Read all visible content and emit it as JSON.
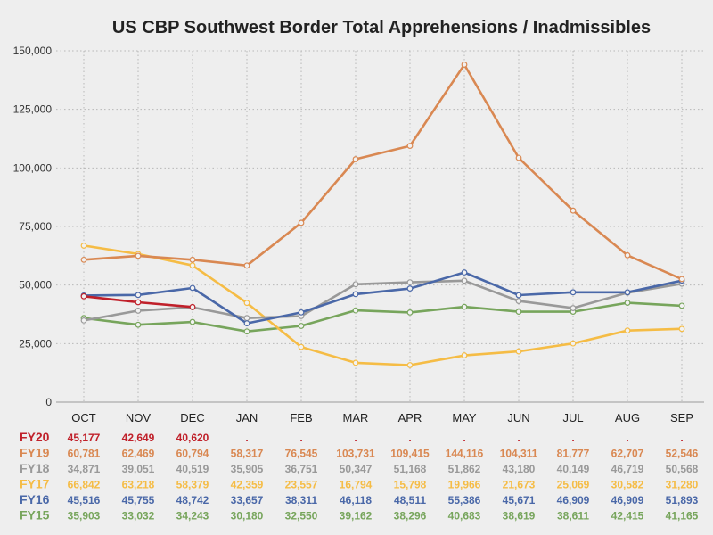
{
  "chart_data": {
    "type": "line",
    "title": "US CBP Southwest Border Total Apprehensions / Inadmissibles",
    "xlabel": "",
    "ylabel": "",
    "ylim": [
      0,
      150000
    ],
    "yticks": [
      "0",
      "25,000",
      "50,000",
      "75,000",
      "100,000",
      "125,000",
      "150,000"
    ],
    "ytick_values": [
      0,
      25000,
      50000,
      75000,
      100000,
      125000,
      150000
    ],
    "grid": true,
    "categories": [
      "OCT",
      "NOV",
      "DEC",
      "JAN",
      "FEB",
      "MAR",
      "APR",
      "MAY",
      "JUN",
      "JUL",
      "AUG",
      "SEP"
    ],
    "series": [
      {
        "name": "FY20",
        "color": "#c0202a",
        "values": [
          45177,
          42649,
          40620,
          null,
          null,
          null,
          null,
          null,
          null,
          null,
          null,
          null
        ],
        "labels": [
          "45,177",
          "42,649",
          "40,620",
          ".",
          ".",
          ".",
          ".",
          ".",
          ".",
          ".",
          ".",
          "."
        ]
      },
      {
        "name": "FY19",
        "color": "#d98852",
        "values": [
          60781,
          62469,
          60794,
          58317,
          76545,
          103731,
          109415,
          144116,
          104311,
          81777,
          62707,
          52546
        ],
        "labels": [
          "60,781",
          "62,469",
          "60,794",
          "58,317",
          "76,545",
          "103,731",
          "109,415",
          "144,116",
          "104,311",
          "81,777",
          "62,707",
          "52,546"
        ]
      },
      {
        "name": "FY18",
        "color": "#999999",
        "values": [
          34871,
          39051,
          40519,
          35905,
          36751,
          50347,
          51168,
          51862,
          43180,
          40149,
          46719,
          50568
        ],
        "labels": [
          "34,871",
          "39,051",
          "40,519",
          "35,905",
          "36,751",
          "50,347",
          "51,168",
          "51,862",
          "43,180",
          "40,149",
          "46,719",
          "50,568"
        ]
      },
      {
        "name": "FY17",
        "color": "#f5bc45",
        "values": [
          66842,
          63218,
          58379,
          42359,
          23557,
          16794,
          15798,
          19966,
          21673,
          25069,
          30582,
          31280
        ],
        "labels": [
          "66,842",
          "63,218",
          "58,379",
          "42,359",
          "23,557",
          "16,794",
          "15,798",
          "19,966",
          "21,673",
          "25,069",
          "30,582",
          "31,280"
        ]
      },
      {
        "name": "FY16",
        "color": "#4a68a8",
        "values": [
          45516,
          45755,
          48742,
          33657,
          38311,
          46118,
          48511,
          55386,
          45671,
          46909,
          46909,
          51893
        ],
        "labels": [
          "45,516",
          "45,755",
          "48,742",
          "33,657",
          "38,311",
          "46,118",
          "48,511",
          "55,386",
          "45,671",
          "46,909",
          "46,909",
          "51,893"
        ]
      },
      {
        "name": "FY15",
        "color": "#77a55c",
        "values": [
          35903,
          33032,
          34243,
          30180,
          32550,
          39162,
          38296,
          40683,
          38619,
          38611,
          42415,
          41165
        ],
        "labels": [
          "35,903",
          "33,032",
          "34,243",
          "30,180",
          "32,550",
          "39,162",
          "38,296",
          "40,683",
          "38,619",
          "38,611",
          "42,415",
          "41,165"
        ]
      }
    ],
    "draw_order": [
      "FY15",
      "FY17",
      "FY18",
      "FY16",
      "FY19",
      "FY20"
    ]
  }
}
